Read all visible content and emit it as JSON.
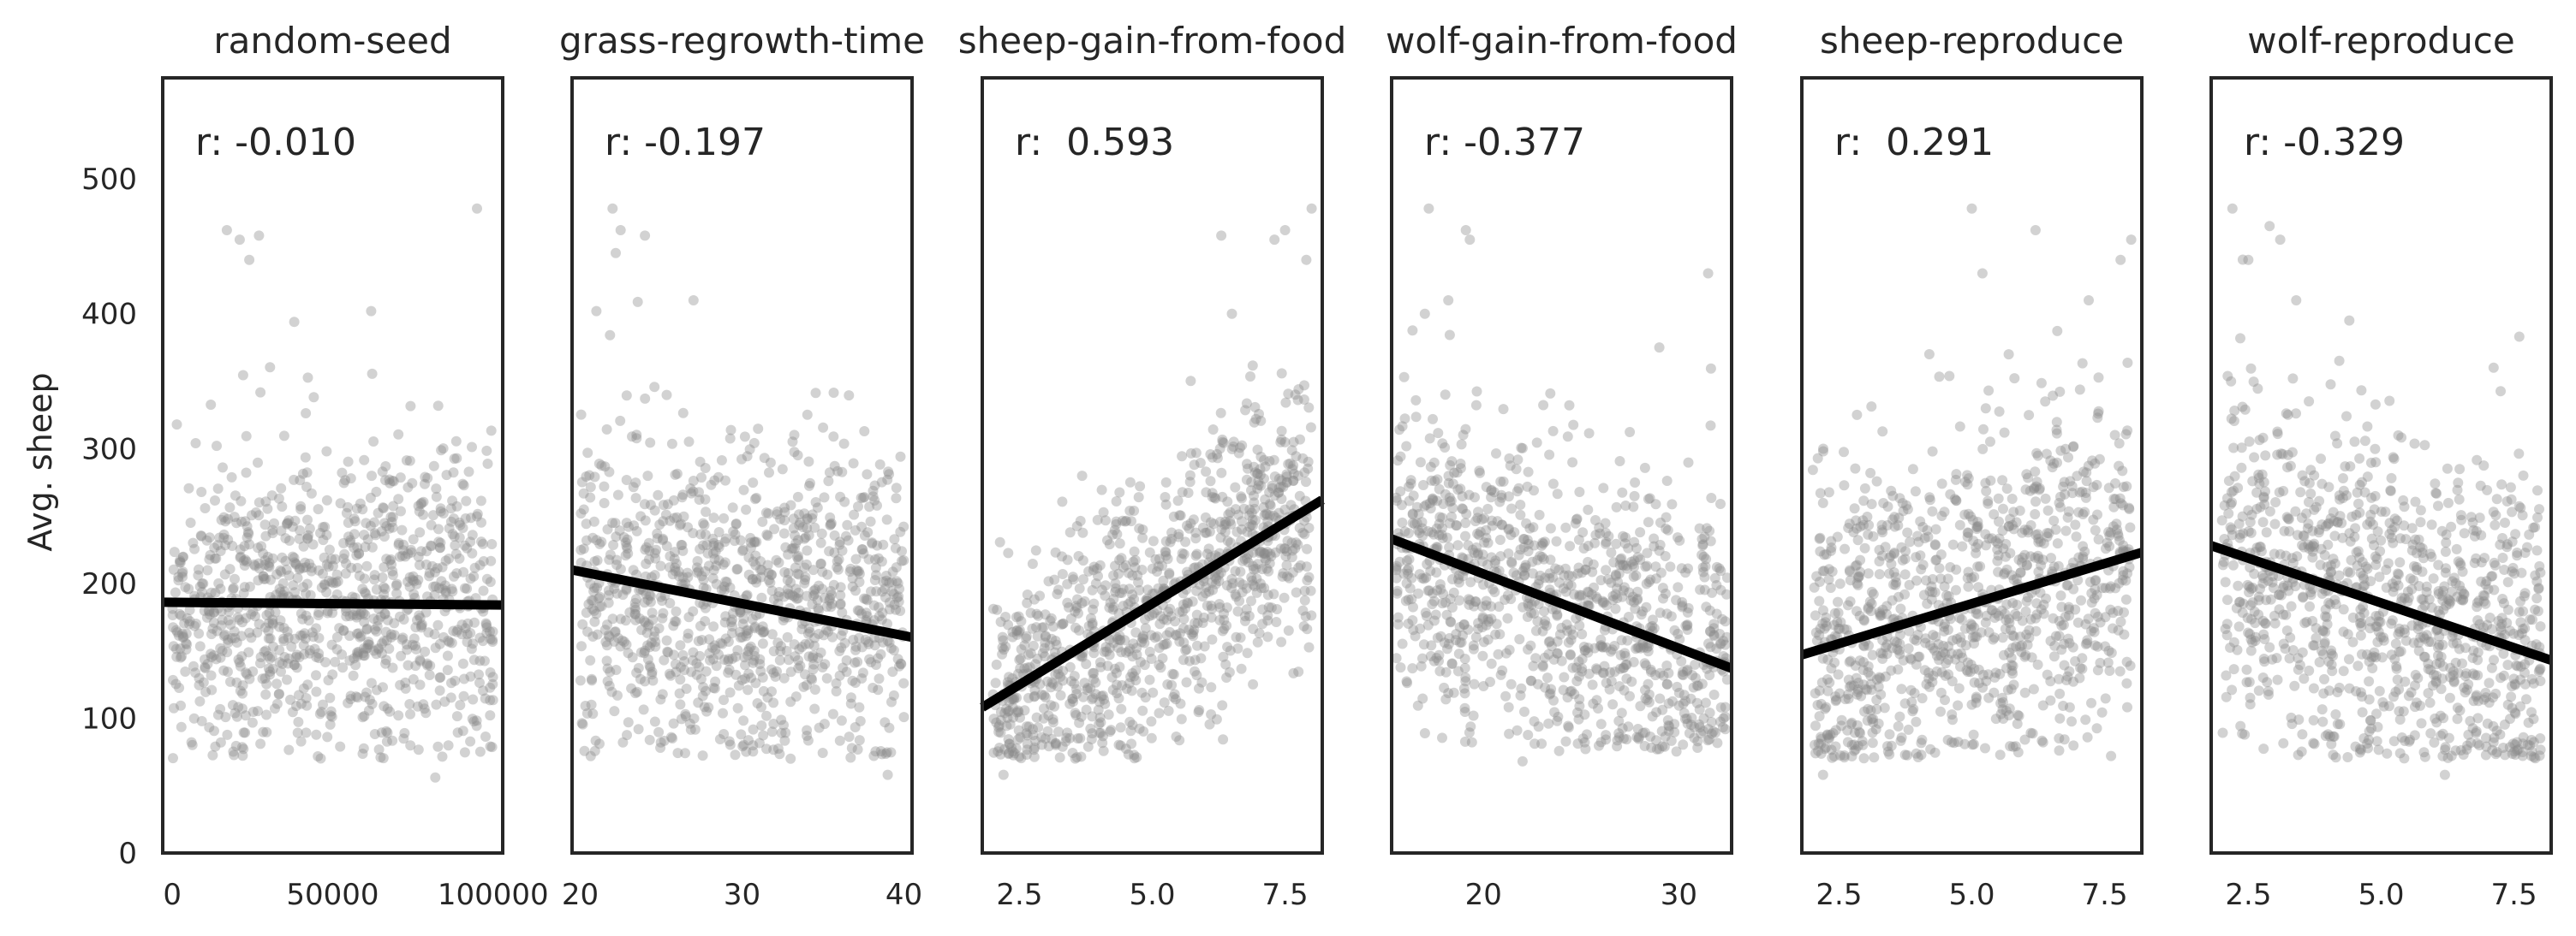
{
  "chart_data": {
    "type": "scatter",
    "ylabel": "Avg. sheep",
    "ylim": [
      0,
      575
    ],
    "yticks": [
      0,
      100,
      200,
      300,
      400,
      500
    ],
    "grid": false,
    "colors": {
      "points": "#8a8a8a",
      "fit_line": "#000000",
      "frame": "#262626"
    },
    "panels": [
      {
        "title": "random-seed",
        "r_label": "r: -0.010",
        "r": -0.01,
        "xlim": [
          -3000,
          103000
        ],
        "xticks": [
          0,
          50000,
          100000
        ],
        "xtick_labels": [
          "0",
          "50000",
          "100000"
        ],
        "trend": {
          "x": [
            -3000,
            103000
          ],
          "y": [
            186,
            184
          ]
        },
        "cloud": {
          "type": "uniform",
          "x": [
            0,
            100000
          ],
          "y_center": 185,
          "y_sd": 58,
          "y_min": 55,
          "y_max": 480,
          "n": 1000
        },
        "outliers": {
          "x": [
            17000,
            21000,
            24000,
            27000,
            62000,
            95000,
            82000,
            38000
          ],
          "y": [
            462,
            455,
            440,
            458,
            402,
            478,
            56,
            394
          ]
        }
      },
      {
        "title": "grass-regrowth-time",
        "r_label": "r: -0.197",
        "r": -0.197,
        "xlim": [
          19.5,
          40.5
        ],
        "xticks": [
          20,
          30,
          40
        ],
        "xtick_labels": [
          "20",
          "30",
          "40"
        ],
        "trend": {
          "x": [
            19.5,
            40.5
          ],
          "y": [
            210,
            160
          ]
        },
        "cloud": {
          "type": "uniform",
          "x": [
            20,
            40
          ],
          "y_center": 185,
          "y_sd": 60,
          "y_min": 55,
          "y_max": 480,
          "n": 1000
        },
        "outliers": {
          "x": [
            22,
            22.5,
            24,
            22.2,
            27,
            21,
            33,
            39
          ],
          "y": [
            478,
            462,
            458,
            445,
            410,
            402,
            70,
            58
          ]
        }
      },
      {
        "title": "sheep-gain-from-food",
        "r_label": "r:  0.593",
        "r": 0.593,
        "xlim": [
          1.8,
          8.2
        ],
        "xticks": [
          2.5,
          5.0,
          7.5
        ],
        "xtick_labels": [
          "2.5",
          "5.0",
          "7.5"
        ],
        "trend": {
          "x": [
            1.8,
            8.2
          ],
          "y": [
            108,
            262
          ]
        },
        "cloud": {
          "type": "uniform",
          "x": [
            2,
            8
          ],
          "y_intercept": 50,
          "y_slope": 26,
          "y_sd": 48,
          "y_min": 55,
          "y_max": 480,
          "n": 1000
        },
        "outliers": {
          "x": [
            8,
            7.5,
            7.3,
            6.3,
            6.5,
            7.9,
            2.2,
            3.3
          ],
          "y": [
            478,
            462,
            455,
            458,
            400,
            440,
            58,
            220
          ]
        }
      },
      {
        "title": "wolf-gain-from-food",
        "r_label": "r: -0.377",
        "r": -0.377,
        "xlim": [
          15.3,
          32.7
        ],
        "xticks": [
          20,
          30
        ],
        "xtick_labels": [
          "20",
          "30"
        ],
        "trend": {
          "x": [
            15.3,
            32.7
          ],
          "y": [
            233,
            137
          ]
        },
        "cloud": {
          "type": "uniform",
          "x": [
            15.5,
            32.5
          ],
          "y_intercept": 320,
          "y_slope": -5.6,
          "y_sd": 58,
          "y_min": 60,
          "y_max": 480,
          "n": 1000
        },
        "outliers": {
          "x": [
            17.2,
            19.1,
            19.3,
            18.2,
            31.5,
            17,
            29,
            22
          ],
          "y": [
            478,
            462,
            455,
            410,
            430,
            400,
            375,
            68
          ]
        }
      },
      {
        "title": "sheep-reproduce",
        "r_label": "r:  0.291",
        "r": 0.291,
        "xlim": [
          1.8,
          8.2
        ],
        "xticks": [
          2.5,
          5.0,
          7.5
        ],
        "xtick_labels": [
          "2.5",
          "5.0",
          "7.5"
        ],
        "trend": {
          "x": [
            1.8,
            8.2
          ],
          "y": [
            147,
            223
          ]
        },
        "cloud": {
          "type": "uniform",
          "x": [
            2,
            8
          ],
          "y_intercept": 125,
          "y_slope": 12.5,
          "y_sd": 62,
          "y_min": 55,
          "y_max": 480,
          "n": 1000
        },
        "outliers": {
          "x": [
            5,
            6.2,
            8,
            7.2,
            7.8,
            2.2,
            5.2,
            4.2
          ],
          "y": [
            478,
            462,
            455,
            410,
            440,
            58,
            430,
            370
          ]
        }
      },
      {
        "title": "wolf-reproduce",
        "r_label": "r: -0.329",
        "r": -0.329,
        "xlim": [
          1.8,
          8.2
        ],
        "xticks": [
          2.5,
          5.0,
          7.5
        ],
        "xtick_labels": [
          "2.5",
          "5.0",
          "7.5"
        ],
        "trend": {
          "x": [
            1.8,
            8.2
          ],
          "y": [
            228,
            143
          ]
        },
        "cloud": {
          "type": "uniform",
          "x": [
            2,
            8
          ],
          "y_intercept": 245,
          "y_slope": -12,
          "y_sd": 62,
          "y_min": 55,
          "y_max": 480,
          "n": 1000
        },
        "outliers": {
          "x": [
            2.2,
            2.9,
            3.1,
            2.5,
            7.6,
            3.4,
            4.4,
            6.2
          ],
          "y": [
            478,
            465,
            455,
            440,
            383,
            410,
            395,
            58
          ]
        }
      }
    ]
  }
}
